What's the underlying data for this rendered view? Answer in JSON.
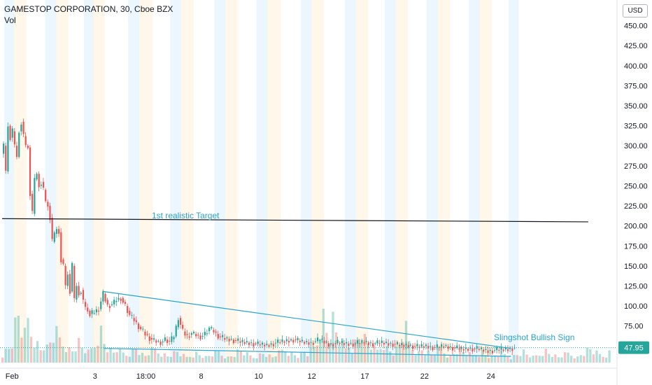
{
  "header": {
    "title": "GAMESTOP CORPORATION, 30, Cboe BZX",
    "volume_label": "Vol",
    "currency": "USD"
  },
  "chart_data": {
    "type": "candlestick",
    "title": "GAMESTOP CORPORATION, 30, Cboe BZX",
    "ylim": [
      45,
      475
    ],
    "y_ticks": [
      75,
      100,
      125,
      150,
      175,
      200,
      225,
      250,
      275,
      300,
      325,
      350,
      375,
      400,
      425,
      450
    ],
    "x_ticks": [
      "Feb",
      "3",
      "18:00",
      "8",
      "10",
      "12",
      "17",
      "22",
      "24"
    ],
    "last_price": "47.95",
    "annotations": [
      {
        "text": "1st realistic Target",
        "price": 208
      },
      {
        "text": "Slingshot Bullish Sign",
        "price": 58
      }
    ],
    "lines": [
      {
        "name": "target",
        "from": {
          "x": 0,
          "price": 209
        },
        "to": {
          "x": 26.5,
          "price": 205
        },
        "color": "#131722"
      },
      {
        "name": "upper-trend",
        "from": {
          "x": 4.6,
          "price": 118
        },
        "to": {
          "x": 23.0,
          "price": 47
        },
        "color": "#2aa3cc"
      },
      {
        "name": "lower-trend",
        "from": {
          "x": 4.6,
          "price": 47
        },
        "to": {
          "x": 23.0,
          "price": 37
        },
        "color": "#2aa3cc"
      }
    ],
    "close_path": [
      [
        0.0,
        290
      ],
      [
        0.1,
        300
      ],
      [
        0.2,
        268
      ],
      [
        0.3,
        325
      ],
      [
        0.4,
        310
      ],
      [
        0.5,
        318
      ],
      [
        0.6,
        300
      ],
      [
        0.7,
        286
      ],
      [
        0.8,
        318
      ],
      [
        0.9,
        330
      ],
      [
        1.0,
        312
      ],
      [
        1.1,
        300
      ],
      [
        1.2,
        298
      ],
      [
        1.3,
        240
      ],
      [
        1.4,
        215
      ],
      [
        1.5,
        258
      ],
      [
        1.6,
        265
      ],
      [
        1.7,
        250
      ],
      [
        1.8,
        255
      ],
      [
        1.9,
        245
      ],
      [
        2.0,
        230
      ],
      [
        2.1,
        225
      ],
      [
        2.2,
        210
      ],
      [
        2.3,
        180
      ],
      [
        2.4,
        190
      ],
      [
        2.5,
        196
      ],
      [
        2.6,
        192
      ],
      [
        2.7,
        158
      ],
      [
        2.8,
        150
      ],
      [
        2.9,
        125
      ],
      [
        3.0,
        140
      ],
      [
        3.1,
        118
      ],
      [
        3.2,
        150
      ],
      [
        3.3,
        108
      ],
      [
        3.4,
        125
      ],
      [
        3.5,
        115
      ],
      [
        3.6,
        120
      ],
      [
        3.7,
        105
      ],
      [
        3.8,
        98
      ],
      [
        3.9,
        94
      ],
      [
        4.0,
        90
      ],
      [
        4.2,
        92
      ],
      [
        4.4,
        96
      ],
      [
        4.6,
        115
      ],
      [
        4.8,
        100
      ],
      [
        5.0,
        102
      ],
      [
        5.2,
        108
      ],
      [
        5.4,
        110
      ],
      [
        5.6,
        100
      ],
      [
        5.8,
        88
      ],
      [
        6.0,
        82
      ],
      [
        6.2,
        74
      ],
      [
        6.4,
        68
      ],
      [
        6.6,
        62
      ],
      [
        6.8,
        58
      ],
      [
        7.0,
        56
      ],
      [
        7.2,
        55
      ],
      [
        7.4,
        58
      ],
      [
        7.6,
        55
      ],
      [
        7.8,
        62
      ],
      [
        8.0,
        85
      ],
      [
        8.2,
        68
      ],
      [
        8.4,
        62
      ],
      [
        8.6,
        66
      ],
      [
        8.8,
        64
      ],
      [
        9.0,
        62
      ],
      [
        9.2,
        65
      ],
      [
        9.4,
        72
      ],
      [
        9.6,
        68
      ],
      [
        9.8,
        62
      ],
      [
        10.0,
        60
      ],
      [
        10.4,
        58
      ],
      [
        10.8,
        55
      ],
      [
        11.2,
        54
      ],
      [
        11.6,
        52
      ],
      [
        12.0,
        51
      ],
      [
        12.4,
        54
      ],
      [
        12.8,
        56
      ],
      [
        13.2,
        58
      ],
      [
        13.6,
        55
      ],
      [
        14.0,
        54
      ],
      [
        14.4,
        58
      ],
      [
        14.8,
        52
      ],
      [
        15.2,
        54
      ],
      [
        15.6,
        53
      ],
      [
        16.0,
        53
      ],
      [
        16.4,
        55
      ],
      [
        16.8,
        53
      ],
      [
        17.2,
        54
      ],
      [
        17.6,
        53
      ],
      [
        18.0,
        51
      ],
      [
        18.4,
        51
      ],
      [
        18.8,
        49
      ],
      [
        19.2,
        50
      ],
      [
        19.6,
        48
      ],
      [
        20.0,
        50
      ],
      [
        20.4,
        48
      ],
      [
        20.8,
        46
      ],
      [
        21.2,
        47
      ],
      [
        21.6,
        46
      ],
      [
        22.0,
        44
      ],
      [
        22.4,
        45
      ],
      [
        22.8,
        46
      ],
      [
        23.2,
        47.95
      ]
    ],
    "volume_profile": [
      12,
      18,
      22,
      30,
      55,
      70,
      48,
      40,
      62,
      45,
      35,
      28,
      20,
      26,
      22,
      30,
      38,
      42,
      35,
      28,
      25,
      20,
      18,
      24,
      30,
      22,
      18,
      15,
      20,
      26,
      40,
      48,
      30,
      22,
      18,
      15,
      20,
      16,
      14,
      12,
      14,
      18,
      22,
      16,
      12,
      10,
      14,
      18,
      20,
      16,
      14,
      12,
      10,
      12,
      14,
      16,
      12,
      10,
      8,
      10,
      12,
      14,
      12,
      10,
      8,
      10,
      12,
      14,
      16,
      12,
      10,
      8,
      10,
      12,
      16,
      18,
      14,
      12,
      10,
      8,
      10,
      12,
      14,
      12,
      10,
      8,
      12,
      14,
      18,
      20,
      16,
      14,
      12,
      10,
      12,
      16
    ],
    "session_bands": [
      {
        "x": 0.1,
        "w": 0.45,
        "kind": "blue"
      },
      {
        "x": 0.55,
        "w": 0.55,
        "kind": "orange"
      },
      {
        "x": 1.95,
        "w": 0.5,
        "kind": "blue"
      },
      {
        "x": 2.45,
        "w": 0.55,
        "kind": "orange"
      },
      {
        "x": 3.7,
        "w": 0.45,
        "kind": "blue"
      },
      {
        "x": 4.1,
        "w": 0.55,
        "kind": "orange"
      },
      {
        "x": 5.7,
        "w": 0.5,
        "kind": "blue"
      },
      {
        "x": 6.2,
        "w": 0.6,
        "kind": "orange"
      },
      {
        "x": 7.6,
        "w": 0.5,
        "kind": "blue"
      },
      {
        "x": 8.1,
        "w": 0.55,
        "kind": "orange"
      },
      {
        "x": 9.6,
        "w": 0.5,
        "kind": "blue"
      },
      {
        "x": 10.1,
        "w": 0.55,
        "kind": "orange"
      },
      {
        "x": 11.5,
        "w": 0.5,
        "kind": "blue"
      },
      {
        "x": 12.0,
        "w": 0.6,
        "kind": "orange"
      },
      {
        "x": 13.5,
        "w": 0.5,
        "kind": "blue"
      },
      {
        "x": 14.0,
        "w": 0.55,
        "kind": "orange"
      },
      {
        "x": 15.5,
        "w": 0.5,
        "kind": "blue"
      },
      {
        "x": 16.0,
        "w": 0.55,
        "kind": "orange"
      },
      {
        "x": 17.3,
        "w": 0.5,
        "kind": "blue"
      },
      {
        "x": 17.8,
        "w": 0.55,
        "kind": "orange"
      },
      {
        "x": 19.2,
        "w": 0.5,
        "kind": "blue"
      },
      {
        "x": 19.7,
        "w": 0.55,
        "kind": "orange"
      },
      {
        "x": 21.1,
        "w": 0.5,
        "kind": "blue"
      },
      {
        "x": 21.6,
        "w": 0.55,
        "kind": "orange"
      },
      {
        "x": 22.9,
        "w": 0.45,
        "kind": "blue"
      }
    ],
    "x_tick_positions": [
      0.15,
      4.2,
      6.5,
      9.0,
      11.6,
      14.0,
      16.4,
      19.1,
      22.1
    ],
    "x_range": [
      0,
      26.5
    ]
  },
  "colors": {
    "up": "#26a69a",
    "down": "#ef5350",
    "trend": "#2aa3cc",
    "band_blue": "#e3f2fd",
    "band_orange": "#fff3e0",
    "price_tag": "#26a69a"
  }
}
